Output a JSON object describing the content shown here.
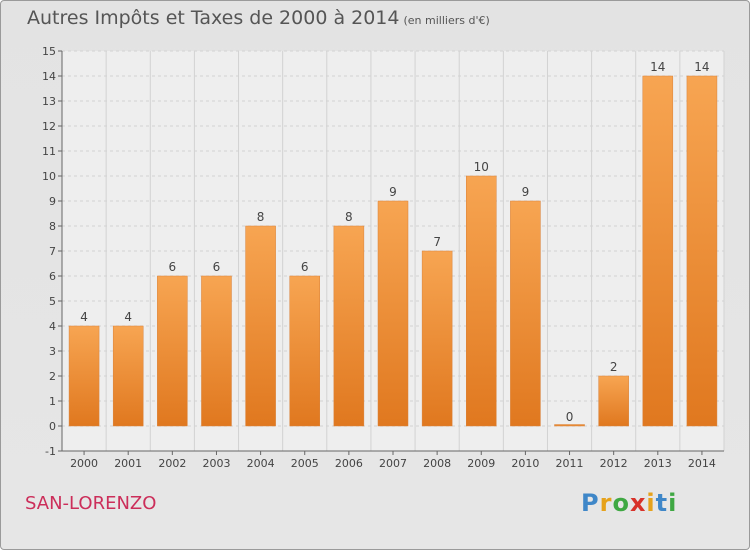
{
  "header": {
    "title": "Autres Impôts et Taxes de 2000 à 2014",
    "unit": "(en milliers d'€)"
  },
  "footer": {
    "place": "SAN-LORENZO",
    "logo_letters": [
      "P",
      "r",
      "o",
      "x",
      "i",
      "t",
      "i"
    ],
    "logo_colors": [
      "#3f87c8",
      "#e6a21b",
      "#3fa843",
      "#d8322a",
      "#e6a21b",
      "#3f87c8",
      "#3fa843"
    ]
  },
  "chart_data": {
    "type": "bar",
    "title": "Autres Impôts et Taxes de 2000 à 2014",
    "subtitle": "(en milliers d'€)",
    "categories": [
      "2000",
      "2001",
      "2002",
      "2003",
      "2004",
      "2005",
      "2006",
      "2007",
      "2008",
      "2009",
      "2010",
      "2011",
      "2012",
      "2013",
      "2014"
    ],
    "values": [
      4,
      4,
      6,
      6,
      8,
      6,
      8,
      9,
      7,
      10,
      9,
      0,
      2,
      14,
      14
    ],
    "ylim": [
      -1,
      15
    ],
    "yticks": [
      -1,
      0,
      1,
      2,
      3,
      4,
      5,
      6,
      7,
      8,
      9,
      10,
      11,
      12,
      13,
      14,
      15
    ],
    "grid": true,
    "bar_color_top": "#f7a552",
    "bar_color_bottom": "#e0781f"
  }
}
